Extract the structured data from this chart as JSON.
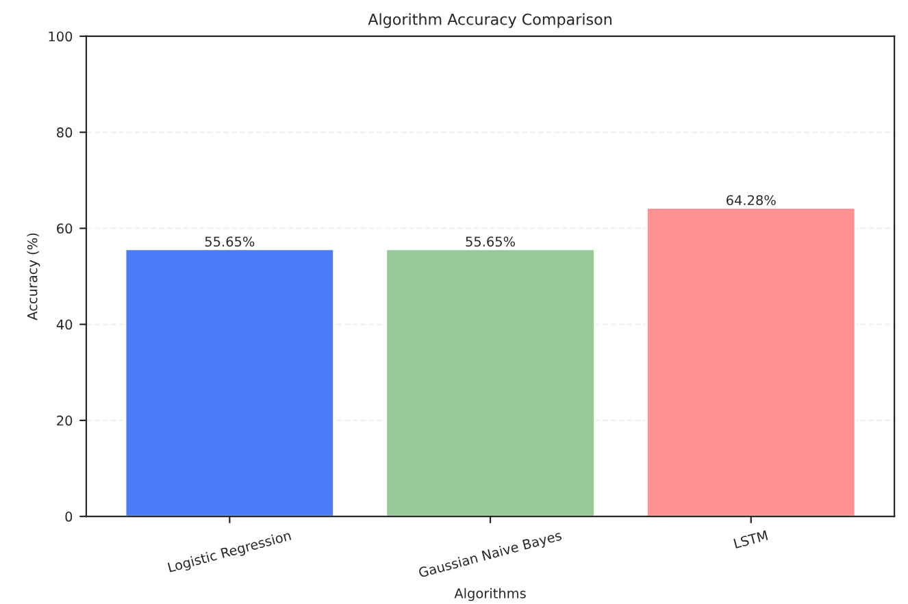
{
  "chart_data": {
    "type": "bar",
    "title": "Algorithm Accuracy Comparison",
    "xlabel": "Algorithms",
    "ylabel": "Accuracy (%)",
    "categories": [
      "Logistic Regression",
      "Gaussian Naive Bayes",
      "LSTM"
    ],
    "values": [
      55.65,
      55.65,
      64.28
    ],
    "colors": [
      "#4a7cf7",
      "#97c996",
      "#fe9191"
    ],
    "value_labels": [
      "55.65%",
      "55.65%",
      "64.28%"
    ],
    "ylim": [
      0,
      100
    ],
    "yticks": [
      0,
      20,
      40,
      60,
      80,
      100
    ],
    "grid": "y"
  }
}
